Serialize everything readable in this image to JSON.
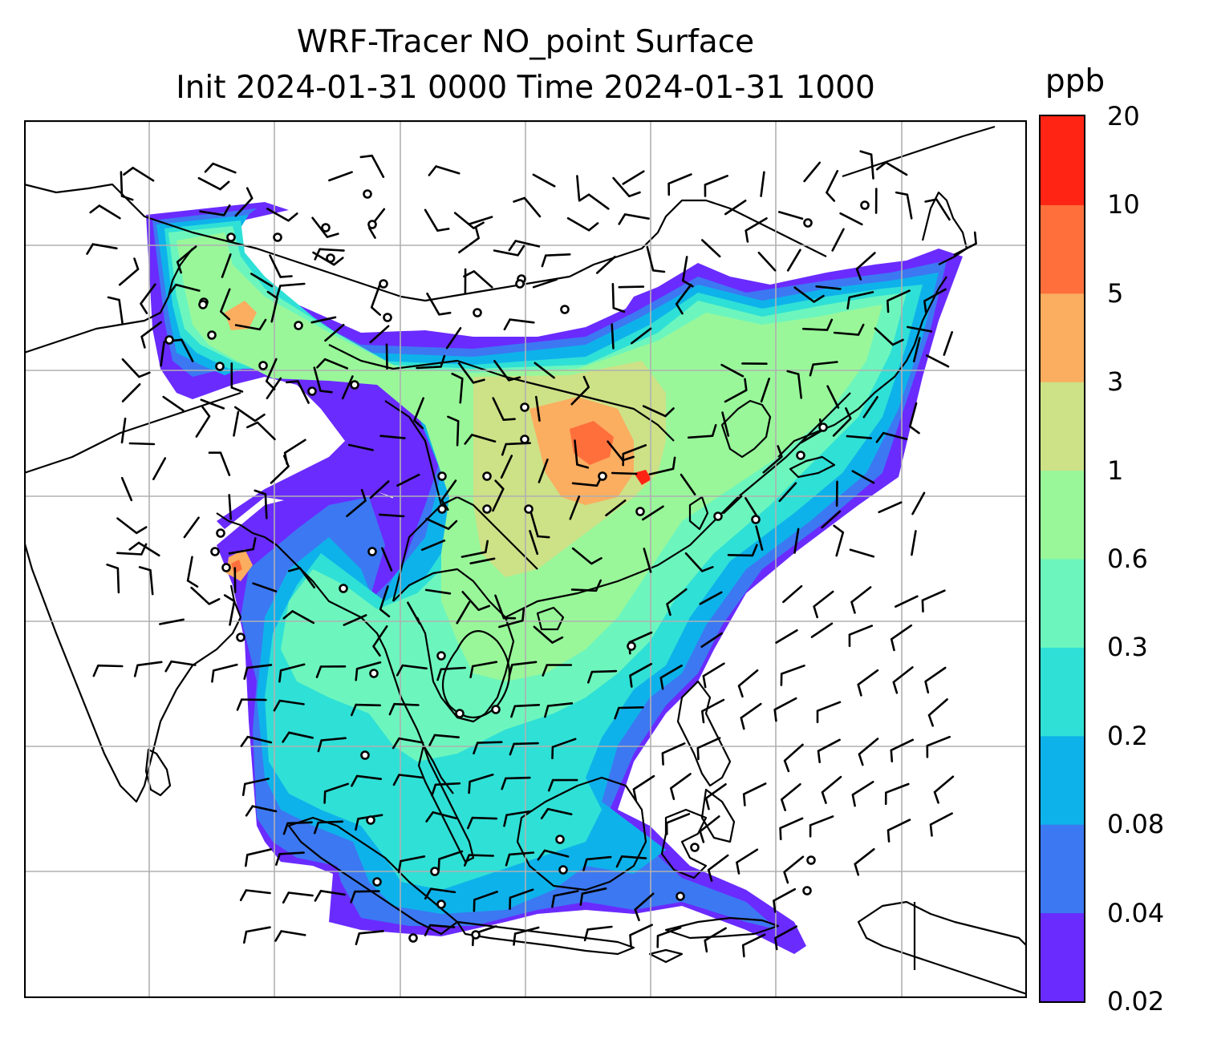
{
  "title": {
    "line1": "WRF-Tracer NO_point Surface",
    "line2": "Init 2024-01-31 0000 Time 2024-01-31 1000"
  },
  "colorbar": {
    "unit": "ppb",
    "levels": [
      "0.02",
      "0.04",
      "0.08",
      "0.2",
      "0.3",
      "0.6",
      "1",
      "3",
      "5",
      "10",
      "20"
    ],
    "colors": [
      "#6a2bff",
      "#3c78f2",
      "#0eb2ea",
      "#2fe0d6",
      "#6cf6bd",
      "#99f79a",
      "#cde187",
      "#fbad60",
      "#ff6f3c",
      "#ff2414"
    ]
  },
  "map": {
    "field": "NO_point",
    "level": "Surface",
    "gridline_color": "#b0b0b0",
    "coastline_color": "#000000",
    "wind_barbs": true,
    "colors": {
      "land_outline": "#000000",
      "background": "#ffffff"
    }
  }
}
